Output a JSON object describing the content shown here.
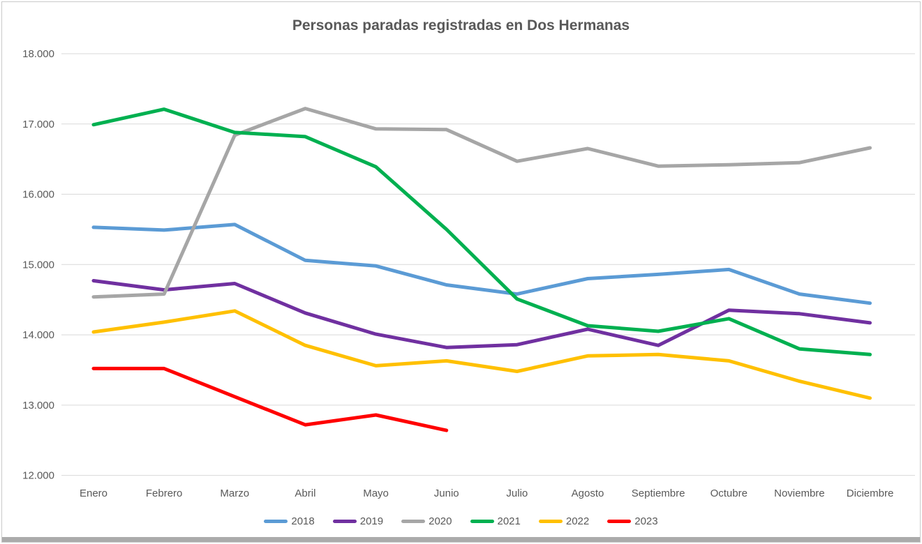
{
  "chart": {
    "title": "Personas paradas registradas en Dos Hermanas"
  },
  "chart_data": {
    "type": "line",
    "title": "Personas paradas registradas en Dos Hermanas",
    "categories": [
      "Enero",
      "Febrero",
      "Marzo",
      "Abril",
      "Mayo",
      "Junio",
      "Julio",
      "Agosto",
      "Septiembre",
      "Octubre",
      "Noviembre",
      "Diciembre"
    ],
    "y_axis": {
      "min": 12000,
      "max": 18000,
      "step": 1000,
      "tick_labels": [
        "12.000",
        "13.000",
        "14.000",
        "15.000",
        "16.000",
        "17.000",
        "18.000"
      ],
      "grid": true
    },
    "legend_position": "bottom",
    "series": [
      {
        "name": "2018",
        "color": "#5B9BD5",
        "values": [
          15530,
          15490,
          15570,
          15060,
          14980,
          14710,
          14580,
          14800,
          14860,
          14930,
          14580,
          14450
        ]
      },
      {
        "name": "2019",
        "color": "#7030A0",
        "values": [
          14770,
          14640,
          14730,
          14310,
          14010,
          13820,
          13860,
          14080,
          13850,
          14350,
          14300,
          14170
        ]
      },
      {
        "name": "2020",
        "color": "#A6A6A6",
        "values": [
          14540,
          14580,
          16840,
          17220,
          16930,
          16920,
          16470,
          16650,
          16400,
          16420,
          16450,
          16660
        ]
      },
      {
        "name": "2021",
        "color": "#00B050",
        "values": [
          16990,
          17210,
          16880,
          16820,
          16390,
          15500,
          14510,
          14130,
          14050,
          14230,
          13800,
          13720
        ]
      },
      {
        "name": "2022",
        "color": "#FFC000",
        "values": [
          14040,
          14180,
          14340,
          13850,
          13560,
          13630,
          13480,
          13700,
          13720,
          13630,
          13340,
          13100
        ]
      },
      {
        "name": "2023",
        "color": "#FF0000",
        "values": [
          13520,
          13520,
          13120,
          12720,
          12860,
          12640
        ]
      }
    ],
    "text_color": "#595959",
    "gridline_color": "#D9D9D9"
  }
}
